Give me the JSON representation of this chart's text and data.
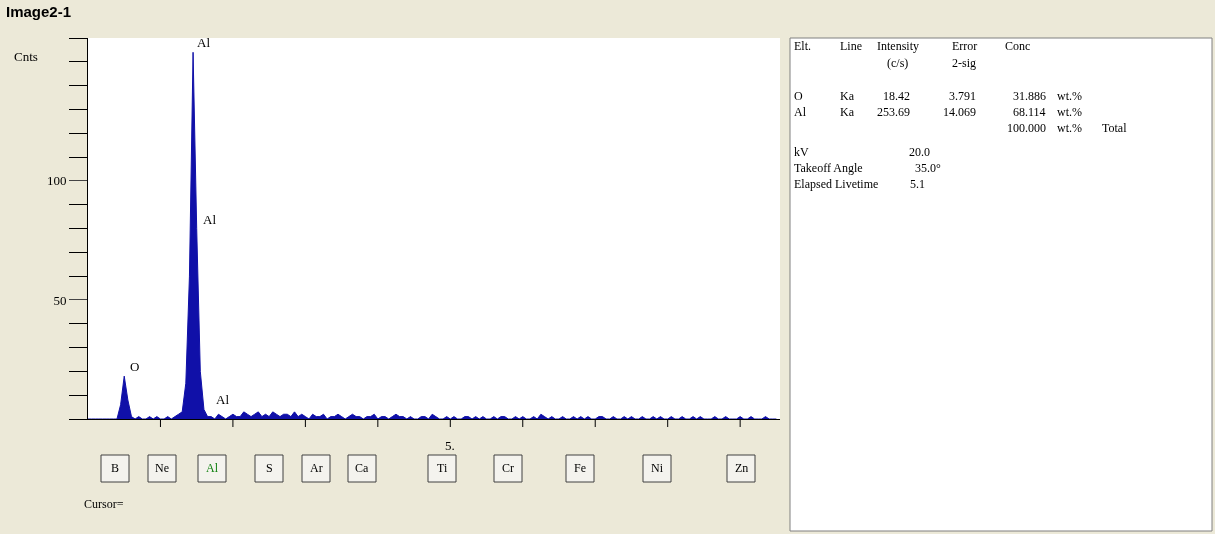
{
  "chart_data": {
    "type": "area",
    "title": "Image2-1",
    "ylabel": "Cnts",
    "categories": [
      null,
      null,
      null,
      null,
      null,
      null,
      null,
      null,
      null,
      null,
      null,
      null,
      null,
      null,
      null,
      null,
      null,
      null,
      null,
      null,
      null,
      null,
      null,
      null,
      null,
      null,
      null,
      null,
      null,
      null,
      null,
      null,
      null,
      null,
      null,
      null,
      null,
      null,
      null,
      null,
      null,
      null,
      null,
      null,
      null,
      null,
      null,
      null,
      null,
      null,
      null,
      null,
      null,
      null,
      null,
      null,
      null,
      null,
      null,
      null,
      null,
      null,
      null,
      null,
      null,
      null,
      null,
      null,
      null,
      null,
      null,
      null,
      null,
      null,
      null,
      null,
      null,
      null,
      null,
      null,
      null,
      null,
      null,
      null,
      null,
      null,
      null,
      null,
      null,
      null,
      null,
      null,
      null,
      null,
      null,
      null,
      null,
      null,
      null,
      null,
      null,
      null,
      null,
      null,
      null,
      null,
      null,
      null,
      null,
      null,
      null,
      null,
      null,
      null,
      null,
      null,
      null,
      null,
      null,
      null,
      null,
      null,
      null,
      null,
      null,
      null,
      null,
      null,
      null,
      null,
      null,
      null,
      null,
      null,
      null,
      null,
      null,
      null,
      null,
      null,
      null,
      null,
      null,
      null,
      null,
      null,
      null,
      null,
      null,
      null,
      null,
      null,
      null,
      null,
      null,
      null,
      null,
      null,
      null,
      null,
      null,
      null,
      null,
      null,
      null,
      null,
      null,
      null,
      null,
      null,
      null,
      null,
      null,
      null,
      null,
      null,
      null,
      null,
      null,
      null,
      null,
      null,
      null,
      null,
      null,
      null,
      null,
      null,
      null,
      null,
      null
    ],
    "series": [
      {
        "color": "#1010a8",
        "values": [
          0,
          0,
          0,
          0,
          0,
          0,
          0,
          0,
          0,
          6,
          18,
          8,
          1,
          0,
          1,
          0,
          0,
          1,
          0,
          1,
          0,
          0,
          1,
          0,
          1,
          2,
          3,
          15,
          60,
          154,
          80,
          20,
          4,
          1,
          1,
          0,
          2,
          1,
          0,
          1,
          2,
          1,
          1,
          3,
          2,
          1,
          2,
          3,
          1,
          2,
          1,
          3,
          2,
          1,
          2,
          2,
          1,
          3,
          1,
          2,
          1,
          0,
          2,
          1,
          1,
          2,
          0,
          1,
          1,
          2,
          1,
          0,
          1,
          2,
          1,
          1,
          0,
          1,
          1,
          2,
          0,
          1,
          1,
          0,
          1,
          2,
          1,
          1,
          0,
          1,
          0,
          0,
          1,
          1,
          0,
          2,
          1,
          0,
          0,
          1,
          0,
          1,
          0,
          0,
          1,
          1,
          0,
          1,
          0,
          1,
          0,
          0,
          1,
          0,
          1,
          1,
          0,
          0,
          1,
          0,
          1,
          0,
          0,
          1,
          0,
          2,
          1,
          0,
          1,
          0,
          0,
          1,
          0,
          0,
          1,
          0,
          1,
          0,
          1,
          0,
          0,
          1,
          1,
          0,
          0,
          1,
          0,
          0,
          1,
          0,
          1,
          0,
          0,
          1,
          0,
          0,
          1,
          0,
          1,
          0,
          0,
          1,
          0,
          0,
          1,
          0,
          0,
          1,
          0,
          1,
          0,
          0,
          0,
          1,
          0,
          0,
          1,
          0,
          0,
          0,
          1,
          0,
          0,
          1,
          0,
          0,
          0,
          1,
          0,
          0,
          0
        ]
      }
    ],
    "ylim": [
      0,
      160
    ],
    "yticks": [
      50,
      100
    ],
    "annotations": [
      "Al",
      "Al",
      "Al",
      "O",
      "5.",
      "Elt.",
      "Line",
      "Intensity",
      "(c/s)",
      "Error",
      "2-sig",
      "Conc",
      "O",
      "Ka",
      "18.42",
      "3.791",
      "31.886",
      "wt.%",
      "Al",
      "Ka",
      "253.69",
      "14.069",
      "68.114",
      "wt.%",
      "100.000",
      "wt.%",
      "Total",
      "kV",
      "20.0",
      "Takeoff Angle",
      "35.0°",
      "Elapsed Livetime",
      "5.1",
      "B",
      "Ne",
      "Al",
      "S",
      "Ar",
      "Ca",
      "Ti",
      "Cr",
      "Fe",
      "Ni",
      "Zn",
      "Cursor="
    ]
  }
}
